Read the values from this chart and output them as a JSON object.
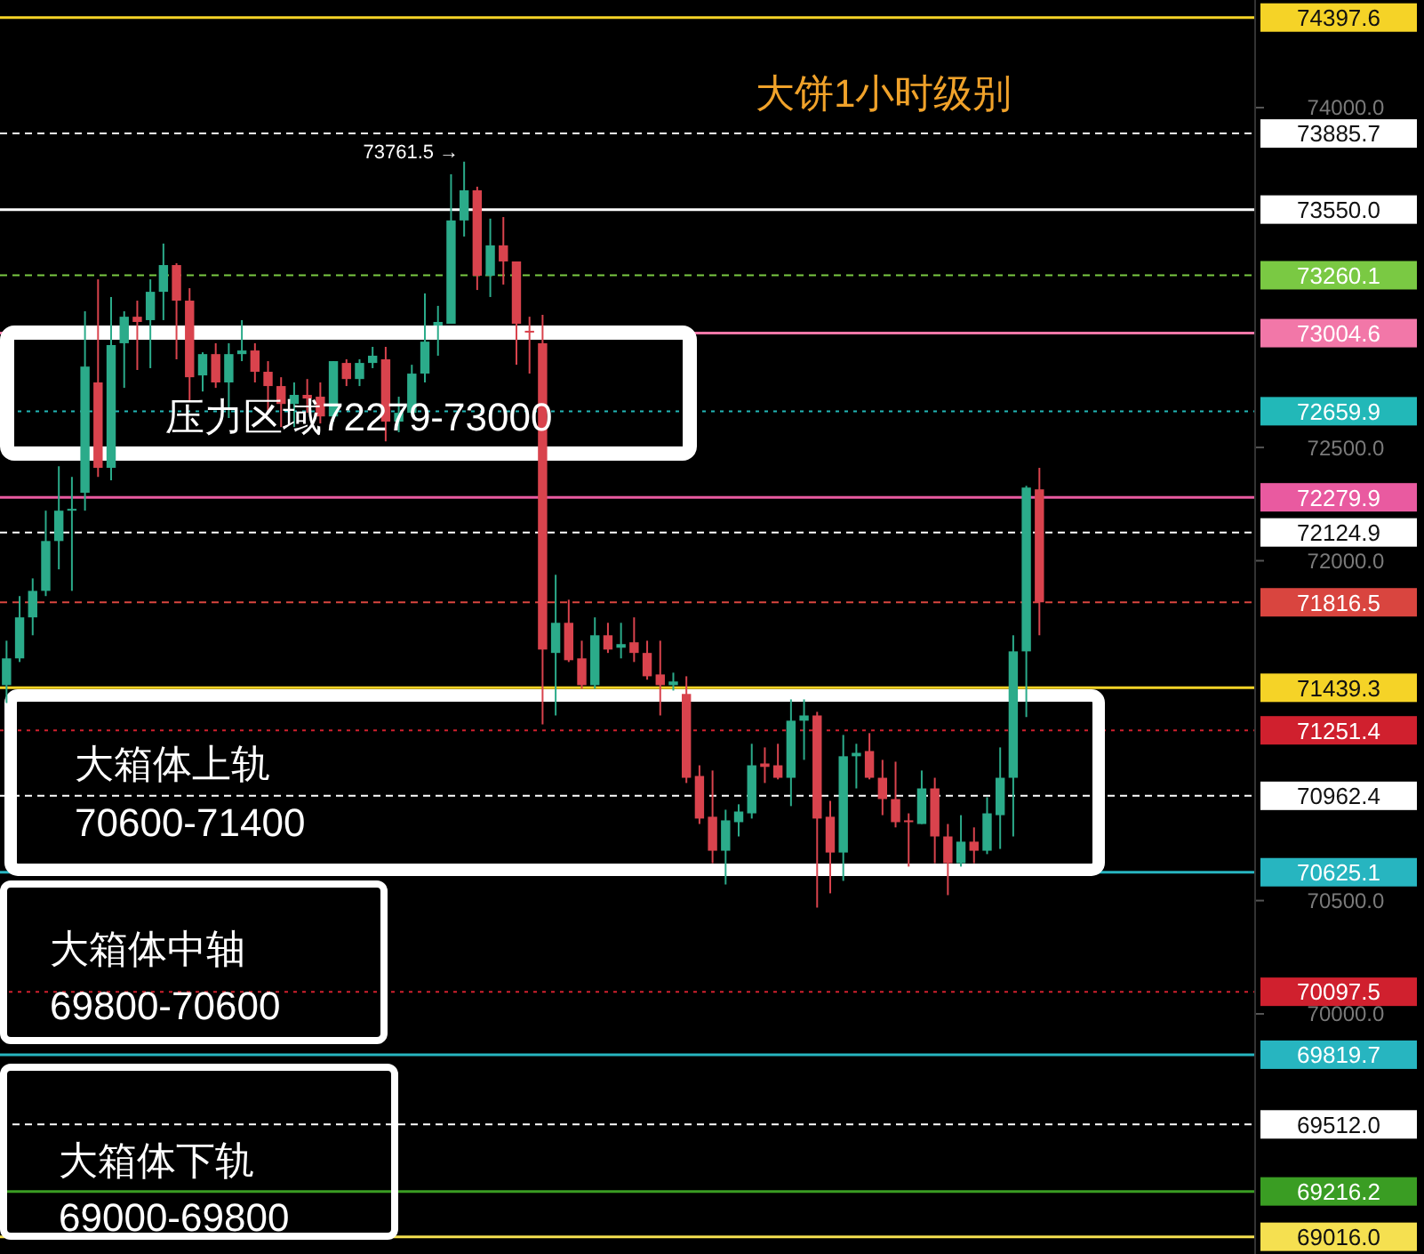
{
  "chart_data": {
    "type": "candlestick",
    "title": "大饼1小时级别",
    "categories": [
      null,
      null,
      null,
      null,
      null,
      null,
      null,
      null,
      null,
      null,
      null,
      null,
      null,
      null,
      null,
      null,
      null,
      null,
      null,
      null,
      null,
      null,
      null,
      null,
      null,
      null,
      null,
      null,
      null,
      null,
      null,
      null,
      null,
      null,
      null,
      null,
      null,
      null,
      null,
      null,
      null,
      null,
      null,
      null,
      null,
      null,
      null,
      null,
      null,
      null,
      null,
      null,
      null,
      null,
      null,
      null,
      null,
      null,
      null,
      null,
      null,
      null,
      null,
      null,
      null,
      null,
      null,
      null,
      null,
      null,
      null,
      null,
      null,
      null,
      null,
      null,
      null,
      null,
      null,
      null,
      null,
      null,
      null,
      null,
      null,
      null,
      null,
      null,
      null,
      null,
      null,
      null,
      null,
      null,
      null,
      null
    ],
    "ohlc": [
      [
        71451,
        71647,
        71372,
        71569
      ],
      [
        71569,
        71844,
        71553,
        71750
      ],
      [
        71750,
        71922,
        71671,
        71867
      ],
      [
        71867,
        72221,
        71844,
        72087
      ],
      [
        72087,
        72417,
        71962,
        72221
      ],
      [
        72221,
        72370,
        71867,
        72229
      ],
      [
        72300,
        73101,
        72221,
        72857
      ],
      [
        72787,
        73242,
        72370,
        72410
      ],
      [
        72410,
        73164,
        72355,
        72952
      ],
      [
        72960,
        73101,
        72763,
        73077
      ],
      [
        73077,
        73148,
        72842,
        73054
      ],
      [
        73062,
        73242,
        72850,
        73187
      ],
      [
        73187,
        73400,
        73062,
        73305
      ],
      [
        73305,
        73313,
        72889,
        73148
      ],
      [
        73148,
        73203,
        72708,
        72810
      ],
      [
        72818,
        72920,
        72747,
        72912
      ],
      [
        72912,
        72960,
        72763,
        72787
      ],
      [
        72787,
        72960,
        72630,
        72912
      ],
      [
        72912,
        73062,
        72881,
        72928
      ],
      [
        72928,
        72960,
        72787,
        72834
      ],
      [
        72834,
        72881,
        72653,
        72771
      ],
      [
        72771,
        72810,
        72590,
        72692
      ],
      [
        72692,
        72787,
        72590,
        72732
      ],
      [
        72732,
        72802,
        72653,
        72716
      ],
      [
        72724,
        72787,
        72606,
        72637
      ],
      [
        72637,
        72881,
        72614,
        72881
      ],
      [
        72873,
        72889,
        72771,
        72802
      ],
      [
        72802,
        72889,
        72771,
        72873
      ],
      [
        72873,
        72944,
        72850,
        72905
      ],
      [
        72889,
        72944,
        72527,
        72614
      ],
      [
        72614,
        72724,
        72567,
        72653
      ],
      [
        72653,
        72865,
        72645,
        72826
      ],
      [
        72826,
        73180,
        72787,
        72967
      ],
      [
        73038,
        73125,
        72905,
        73054
      ],
      [
        73046,
        73706,
        73046,
        73502
      ],
      [
        73502,
        73761.5,
        73431,
        73635
      ],
      [
        73635,
        73651,
        73195,
        73258
      ],
      [
        73258,
        73510,
        73164,
        73392
      ],
      [
        73392,
        73517,
        73219,
        73321
      ],
      [
        73321,
        73321,
        72865,
        73046
      ],
      [
        73015,
        73077,
        72826,
        73007
      ],
      [
        72960,
        73085,
        71278,
        71608
      ],
      [
        71593,
        71938,
        71317,
        71726
      ],
      [
        71726,
        71828,
        71553,
        71561
      ],
      [
        71569,
        71647,
        71435,
        71451
      ],
      [
        71451,
        71750,
        71435,
        71671
      ],
      [
        71671,
        71726,
        71593,
        71608
      ],
      [
        71616,
        71726,
        71569,
        71632
      ],
      [
        71640,
        71750,
        71553,
        71593
      ],
      [
        71593,
        71647,
        71475,
        71490
      ],
      [
        71498,
        71647,
        71317,
        71451
      ],
      [
        71451,
        71506,
        71427,
        71467
      ],
      [
        71412,
        71490,
        71019,
        71042
      ],
      [
        71050,
        71097,
        70838,
        70862
      ],
      [
        70870,
        71074,
        70665,
        70720
      ],
      [
        70720,
        70901,
        70571,
        70854
      ],
      [
        70846,
        70925,
        70783,
        70893
      ],
      [
        70885,
        71192,
        70862,
        71097
      ],
      [
        71105,
        71176,
        71019,
        71090
      ],
      [
        71097,
        71192,
        71035,
        71042
      ],
      [
        71042,
        71388,
        70917,
        71294
      ],
      [
        71294,
        71388,
        71121,
        71317
      ],
      [
        71317,
        71333,
        70469,
        70862
      ],
      [
        70870,
        70940,
        70532,
        70712
      ],
      [
        70712,
        71231,
        70587,
        71137
      ],
      [
        71137,
        71192,
        70995,
        71152
      ],
      [
        71160,
        71239,
        71035,
        71042
      ],
      [
        71042,
        71121,
        70877,
        70948
      ],
      [
        70948,
        71113,
        70823,
        70846
      ],
      [
        70854,
        70885,
        70650,
        70846
      ],
      [
        70838,
        71074,
        70838,
        70995
      ],
      [
        70995,
        71042,
        70665,
        70783
      ],
      [
        70783,
        70838,
        70524,
        70665
      ],
      [
        70665,
        70877,
        70650,
        70760
      ],
      [
        70760,
        70823,
        70665,
        70720
      ],
      [
        70720,
        70956,
        70705,
        70885
      ],
      [
        70877,
        71176,
        70728,
        71042
      ],
      [
        71042,
        71671,
        70783,
        71600
      ],
      [
        71600,
        72331,
        71310,
        72323
      ],
      [
        72315,
        72410,
        71671,
        71816.5
      ],
      null,
      null,
      null,
      null,
      null,
      null,
      null,
      null,
      null,
      null,
      null,
      null,
      null,
      null,
      null,
      null
    ],
    "colors": [
      "#2bab8a",
      "#2bab8a",
      "#2bab8a",
      "#2bab8a",
      "#2bab8a",
      "#2bab8a",
      "#2bab8a",
      "#d9434d",
      "#2bab8a",
      "#2bab8a",
      "#d9434d",
      "#2bab8a",
      "#2bab8a",
      "#d9434d",
      "#d9434d",
      "#2bab8a",
      "#d9434d",
      "#2bab8a",
      "#2bab8a",
      "#d9434d",
      "#d9434d",
      "#d9434d",
      "#2bab8a",
      "#d9434d",
      "#d9434d",
      "#2bab8a",
      "#d9434d",
      "#2bab8a",
      "#2bab8a",
      "#d9434d",
      "#2bab8a",
      "#2bab8a",
      "#2bab8a",
      "#2bab8a",
      "#2bab8a",
      "#2bab8a",
      "#d9434d",
      "#2bab8a",
      "#d9434d",
      "#d9434d",
      "#d9434d",
      "#d9434d",
      "#2bab8a",
      "#d9434d",
      "#d9434d",
      "#2bab8a",
      "#d9434d",
      "#2bab8a",
      "#d9434d",
      "#d9434d",
      "#d9434d",
      "#2bab8a",
      "#d9434d",
      "#d9434d",
      "#d9434d",
      "#2bab8a",
      "#2bab8a",
      "#2bab8a",
      "#d9434d",
      "#d9434d",
      "#2bab8a",
      "#2bab8a",
      "#d9434d",
      "#d9434d",
      "#2bab8a",
      "#2bab8a",
      "#d9434d",
      "#d9434d",
      "#d9434d",
      "#d9434d",
      "#2bab8a",
      "#d9434d",
      "#d9434d",
      "#2bab8a",
      "#d9434d",
      "#2bab8a",
      "#2bab8a",
      "#2bab8a",
      "#2bab8a",
      "#d9434d",
      null,
      null,
      null,
      null,
      null,
      null,
      null,
      null,
      null,
      null,
      null,
      null,
      null,
      null,
      null,
      null
    ],
    "ylim": [
      68940,
      74475
    ],
    "yticks": [
      {
        "value": 74000,
        "label": "74000.0"
      },
      {
        "value": 72500,
        "label": "72500.0"
      },
      {
        "value": 72000,
        "label": "72000.0"
      },
      {
        "value": 70500,
        "label": "70500.0"
      },
      {
        "value": 70000,
        "label": "70000.0"
      }
    ],
    "ref_lines": [
      {
        "axis": "y",
        "value": 74397.6,
        "label": "74397.6",
        "color": "#f5d327",
        "line_style": "solid"
      },
      {
        "axis": "y",
        "value": 73885.7,
        "label": "73885.7",
        "color": "#ffffff",
        "line_style": "dashed"
      },
      {
        "axis": "y",
        "value": 73550.0,
        "label": "73550.0",
        "color": "#ffffff",
        "line_style": "solid"
      },
      {
        "axis": "y",
        "value": 73260.1,
        "label": "73260.1",
        "color": "#7ac943",
        "line_style": "dashed"
      },
      {
        "axis": "y",
        "value": 73004.6,
        "label": "73004.6",
        "color": "#f277a8",
        "line_style": "solid"
      },
      {
        "axis": "y",
        "value": 72659.9,
        "label": "72659.9",
        "color": "#22b8b8",
        "line_style": "dotted"
      },
      {
        "axis": "y",
        "value": 72279.9,
        "label": "72279.9",
        "color": "#e95aa0",
        "line_style": "solid"
      },
      {
        "axis": "y",
        "value": 72124.9,
        "label": "72124.9",
        "color": "#ffffff",
        "line_style": "dashed"
      },
      {
        "axis": "y",
        "value": 71816.5,
        "label": "71816.5",
        "color": "#d9453f",
        "line_style": "dashed"
      },
      {
        "axis": "y",
        "value": 71439.3,
        "label": "71439.3",
        "color": "#f5d327",
        "line_style": "solid"
      },
      {
        "axis": "y",
        "value": 71251.4,
        "label": "71251.4",
        "color": "#d0202e",
        "line_style": "dotted"
      },
      {
        "axis": "y",
        "value": 70962.4,
        "label": "70962.4",
        "color": "#ffffff",
        "line_style": "dashed"
      },
      {
        "axis": "y",
        "value": 70625.1,
        "label": "70625.1",
        "color": "#27b5c0",
        "line_style": "solid"
      },
      {
        "axis": "y",
        "value": 70097.5,
        "label": "70097.5",
        "color": "#d0202e",
        "line_style": "dotted"
      },
      {
        "axis": "y",
        "value": 69819.7,
        "label": "69819.7",
        "color": "#27b5c0",
        "line_style": "solid"
      },
      {
        "axis": "y",
        "value": 69512.0,
        "label": "69512.0",
        "color": "#ffffff",
        "line_style": "dashed"
      },
      {
        "axis": "y",
        "value": 69216.2,
        "label": "69216.2",
        "color": "#3a9d23",
        "line_style": "solid"
      },
      {
        "axis": "y",
        "value": 69016.0,
        "label": "69016.0",
        "color": "#f5e050",
        "line_style": "solid"
      }
    ],
    "annotations": [
      "73761.5 →",
      "压力区域72279-73000",
      "大箱体上轨\n70600-71400",
      "大箱体中轴\n69800-70600",
      "大箱体下轨\n69000-69800"
    ]
  }
}
